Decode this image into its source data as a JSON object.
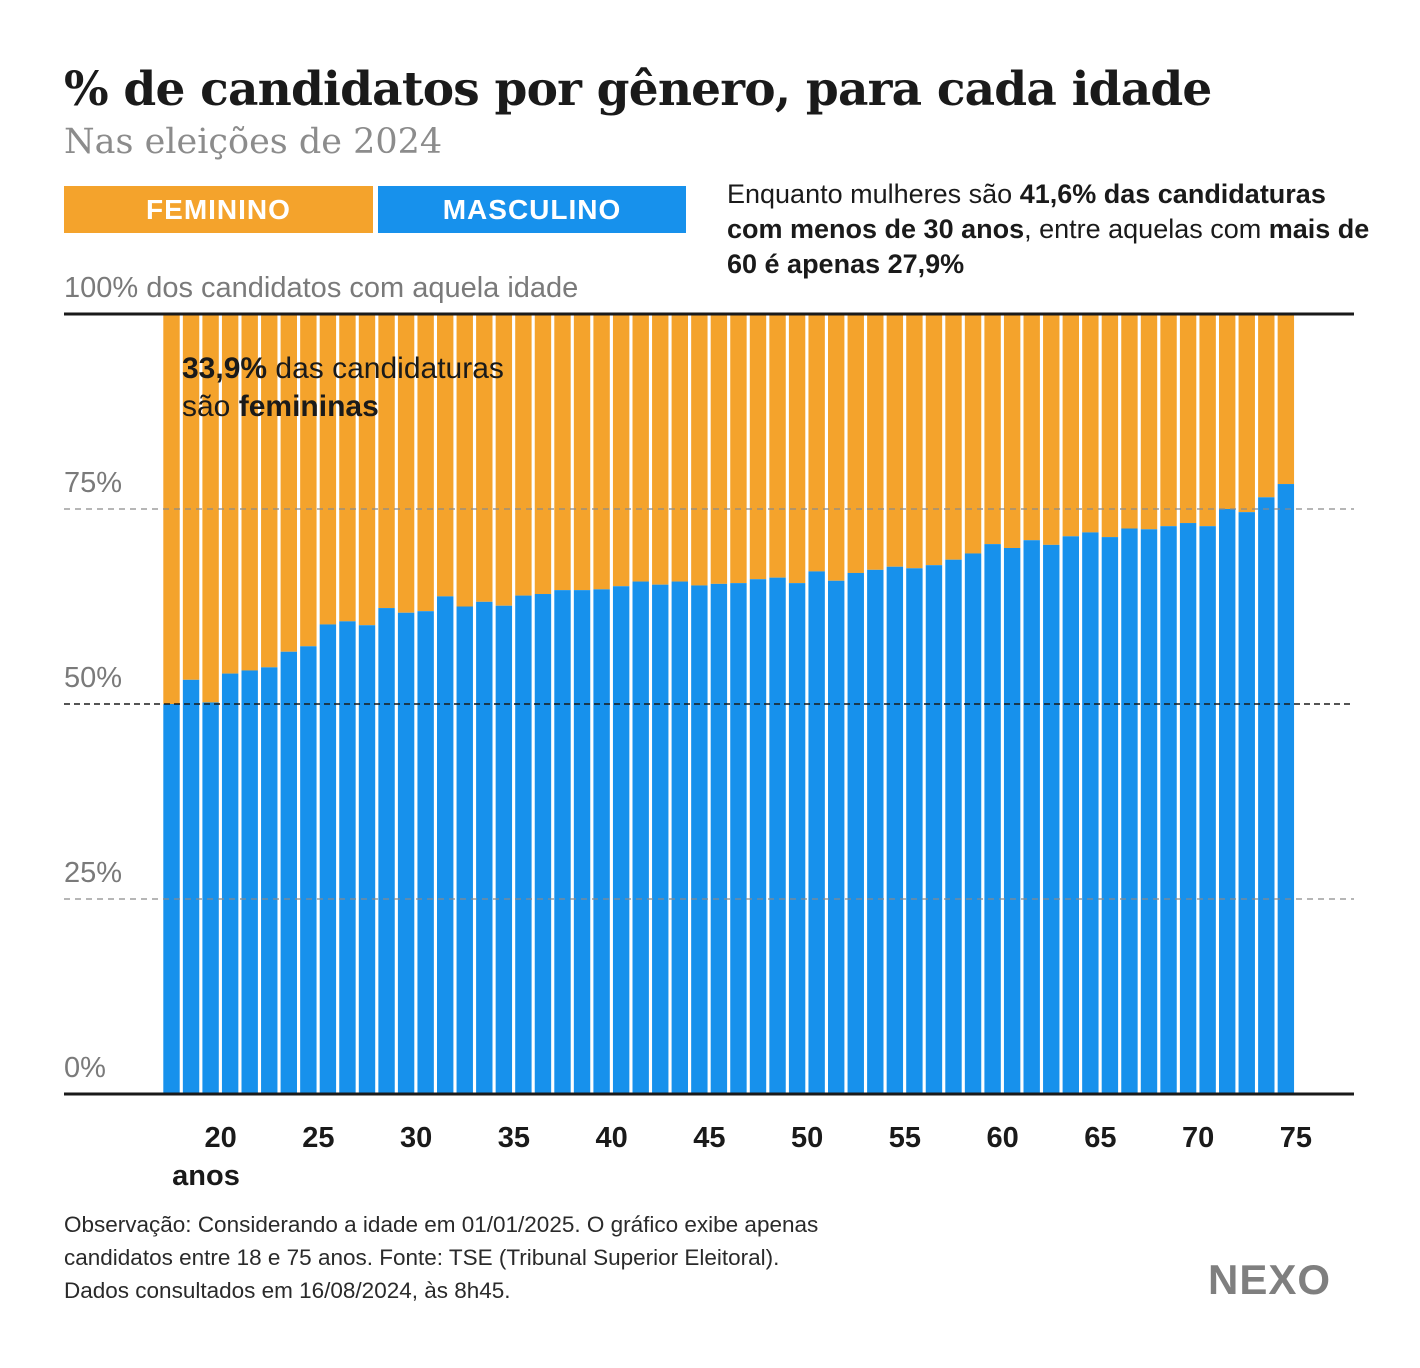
{
  "colors": {
    "feminino": "#f4a32c",
    "masculino": "#1791ec",
    "text": "#1a1a1a",
    "muted": "#7a7a7a"
  },
  "chart_data": {
    "type": "bar",
    "stacked": true,
    "title": "% de candidatos por gênero, para cada idade",
    "subtitle": "Nas eleições de 2024",
    "legend": {
      "feminino": "FEMININO",
      "masculino": "MASCULINO"
    },
    "annotation": {
      "p1": "Enquanto mulheres são ",
      "b1": "41,6% das candidaturas com menos de 30 anos",
      "p2": ", entre aquelas com ",
      "b2": "mais de 60 é apenas 27,9%"
    },
    "top_label": "100% dos candidatos com aquela idade",
    "inner_annotation": {
      "b1": "33,9%",
      "p1": " das candidaturas",
      "p2": "são ",
      "b2": "femininas"
    },
    "ylim": [
      0,
      100
    ],
    "y_ticks": [
      "75%",
      "50%",
      "25%",
      "0%"
    ],
    "x_ticks": [
      "20",
      "25",
      "30",
      "35",
      "40",
      "45",
      "50",
      "55",
      "60",
      "65",
      "70",
      "75"
    ],
    "x_unit": "anos",
    "x": [
      18,
      19,
      20,
      21,
      22,
      23,
      24,
      25,
      26,
      27,
      28,
      29,
      30,
      31,
      32,
      33,
      34,
      35,
      36,
      37,
      38,
      39,
      40,
      41,
      42,
      43,
      44,
      45,
      46,
      47,
      48,
      49,
      50,
      51,
      52,
      53,
      54,
      55,
      56,
      57,
      58,
      59,
      60,
      61,
      62,
      63,
      64,
      65,
      66,
      67,
      68,
      69,
      70,
      71,
      72,
      73,
      74,
      75
    ],
    "series": [
      {
        "name": "Masculino",
        "values": [
          50.0,
          53.1,
          50.2,
          53.9,
          54.3,
          54.7,
          56.7,
          57.4,
          60.2,
          60.6,
          60.1,
          62.3,
          61.7,
          61.9,
          63.8,
          62.5,
          63.1,
          62.6,
          63.9,
          64.1,
          64.6,
          64.6,
          64.7,
          65.1,
          65.7,
          65.3,
          65.7,
          65.2,
          65.4,
          65.5,
          66.0,
          66.2,
          65.5,
          67.0,
          65.8,
          66.8,
          67.2,
          67.6,
          67.4,
          67.8,
          68.5,
          69.3,
          70.5,
          70.0,
          71.0,
          70.4,
          71.5,
          72.0,
          71.4,
          72.5,
          72.4,
          72.8,
          73.2,
          72.8,
          75.0,
          74.6,
          76.5,
          78.2
        ]
      },
      {
        "name": "Feminino",
        "values": [
          50.0,
          46.9,
          49.8,
          46.1,
          45.7,
          45.3,
          43.3,
          42.6,
          39.8,
          39.4,
          39.9,
          37.7,
          38.3,
          38.1,
          36.2,
          37.5,
          36.9,
          37.4,
          36.1,
          35.9,
          35.4,
          35.4,
          35.3,
          34.9,
          34.3,
          34.7,
          34.3,
          34.8,
          34.6,
          34.5,
          34.0,
          33.8,
          34.5,
          33.0,
          34.2,
          33.2,
          32.8,
          32.4,
          32.6,
          32.2,
          31.5,
          30.7,
          29.5,
          30.0,
          29.0,
          29.6,
          28.5,
          28.0,
          28.6,
          27.5,
          27.6,
          27.2,
          26.8,
          27.2,
          25.0,
          25.4,
          23.5,
          21.8
        ]
      }
    ]
  },
  "footer": {
    "note_lines": [
      "Observação: Considerando a idade em 01/01/2025. O gráfico exibe apenas",
      "candidatos entre 18 e 75 anos. Fonte: TSE (Tribunal Superior Eleitoral).",
      "Dados consultados em 16/08/2024, às 8h45."
    ],
    "logo": "NEXO"
  }
}
